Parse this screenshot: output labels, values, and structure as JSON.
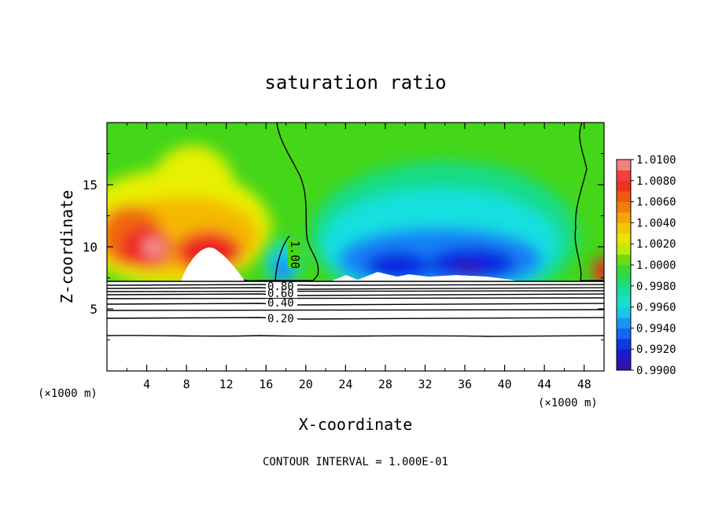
{
  "chart_data": {
    "type": "heatmap",
    "title": "saturation ratio",
    "xlabel": "X-coordinate",
    "ylabel": "Z-coordinate",
    "x_unit_left": "(×1000 m)",
    "x_unit_right": "(×1000 m)",
    "footer": "CONTOUR INTERVAL = 1.000E-01",
    "xlim": [
      0,
      50
    ],
    "ylim": [
      0,
      20
    ],
    "x_ticks": [
      4,
      8,
      12,
      16,
      20,
      24,
      28,
      32,
      36,
      40,
      44,
      48
    ],
    "y_ticks": [
      5,
      10,
      15
    ],
    "colorbar": {
      "min": 0.99,
      "max": 1.01,
      "step": 0.001,
      "labels": [
        "1.0100",
        "1.0080",
        "1.0060",
        "1.0040",
        "1.0020",
        "1.0000",
        "0.9980",
        "0.9960",
        "0.9940",
        "0.9920",
        "0.9900"
      ]
    },
    "contour_interval": 0.1,
    "contour_labels": [
      "1.00",
      "0.80",
      "0.60",
      "0.40",
      "0.20"
    ],
    "colors": {
      "v1_0100": "#f7a0a0",
      "v1_0080": "#ee2020",
      "v1_0060": "#f06a10",
      "v1_0040": "#f5b800",
      "v1_0020": "#e8f000",
      "v1_0000": "#44d619",
      "v0_9980": "#18dc86",
      "v0_9960": "#18e0e0",
      "v0_9940": "#1680f5",
      "v0_9920": "#1020e0",
      "v0_9900": "#3a0ca0"
    }
  }
}
